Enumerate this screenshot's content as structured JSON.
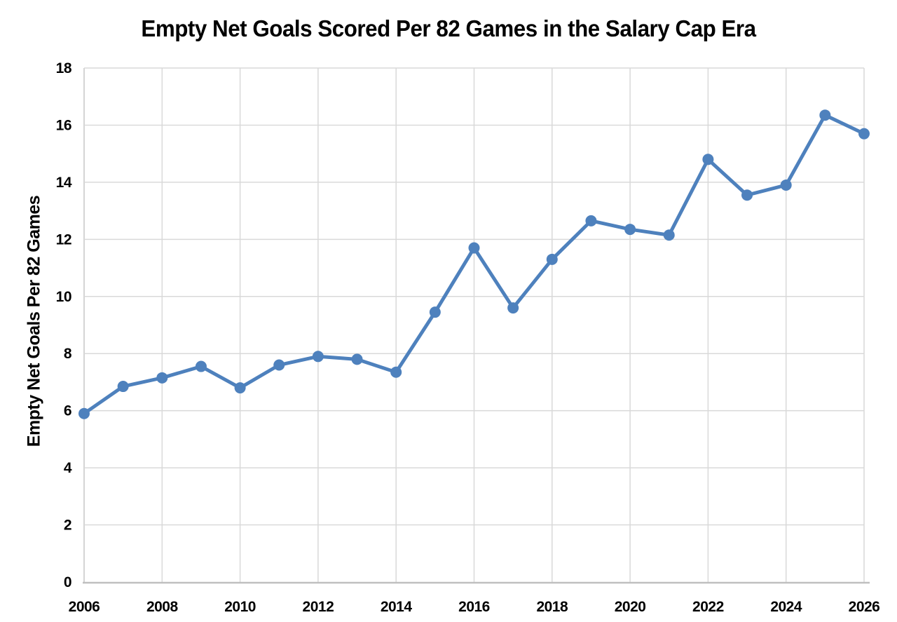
{
  "chart_data": {
    "type": "line",
    "title": "Empty Net Goals Scored Per 82 Games in the Salary Cap Era",
    "xlabel": "",
    "ylabel": "Empty Net Goals Per 82 Games",
    "x": [
      2006,
      2007,
      2008,
      2009,
      2010,
      2011,
      2012,
      2013,
      2014,
      2015,
      2016,
      2017,
      2018,
      2019,
      2020,
      2021,
      2022,
      2023,
      2024,
      2025,
      2026
    ],
    "values": [
      5.9,
      6.85,
      7.15,
      7.55,
      6.8,
      7.6,
      7.9,
      7.8,
      7.35,
      9.45,
      11.7,
      9.6,
      11.3,
      12.65,
      12.35,
      12.15,
      14.8,
      13.55,
      13.9,
      16.35,
      15.7
    ],
    "xlim": [
      2006,
      2026
    ],
    "ylim": [
      0,
      18
    ],
    "x_ticks": [
      2006,
      2008,
      2010,
      2012,
      2014,
      2016,
      2018,
      2020,
      2022,
      2024,
      2026
    ],
    "y_ticks": [
      0,
      2,
      4,
      6,
      8,
      10,
      12,
      14,
      16,
      18
    ],
    "grid": true,
    "legend": "none",
    "marker": "circle",
    "colors": {
      "line": "#4E81BD",
      "grid": "#D9D9D9",
      "axis_line": "#BFBFBF",
      "plot_border": "#C5C5C5",
      "text": "#000000",
      "background": "#FFFFFF"
    }
  }
}
